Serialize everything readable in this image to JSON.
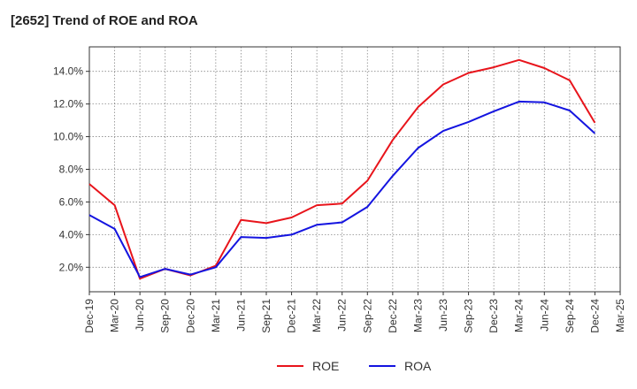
{
  "chart_data": {
    "type": "line",
    "title": "[2652]  Trend of ROE and ROA",
    "xlabel": "",
    "ylabel": "",
    "x": [
      "Dec-19",
      "Mar-20",
      "Jun-20",
      "Sep-20",
      "Dec-20",
      "Mar-21",
      "Jun-21",
      "Sep-21",
      "Dec-21",
      "Mar-22",
      "Jun-22",
      "Sep-22",
      "Dec-22",
      "Mar-23",
      "Jun-23",
      "Sep-23",
      "Dec-23",
      "Mar-24",
      "Jun-24",
      "Sep-24",
      "Dec-24",
      "Mar-25"
    ],
    "ylim": [
      0.5,
      15.5
    ],
    "yticks": [
      2,
      4,
      6,
      8,
      10,
      12,
      14
    ],
    "ytick_labels": [
      "2.0%",
      "4.0%",
      "6.0%",
      "8.0%",
      "10.0%",
      "12.0%",
      "14.0%"
    ],
    "grid": true,
    "legend": "bottom-center",
    "series": [
      {
        "name": "ROE",
        "color": "#e8141b",
        "values": [
          7.1,
          5.8,
          1.3,
          1.9,
          1.5,
          2.1,
          4.9,
          4.7,
          5.05,
          5.8,
          5.9,
          7.3,
          9.8,
          11.8,
          13.2,
          13.9,
          14.25,
          14.7,
          14.2,
          13.45,
          10.85,
          null
        ]
      },
      {
        "name": "ROA",
        "color": "#1414e0",
        "values": [
          5.2,
          4.35,
          1.4,
          1.9,
          1.55,
          2.0,
          3.85,
          3.8,
          4.0,
          4.6,
          4.75,
          5.7,
          7.6,
          9.3,
          10.35,
          10.9,
          11.55,
          12.15,
          12.1,
          11.6,
          10.2,
          null
        ]
      }
    ]
  }
}
